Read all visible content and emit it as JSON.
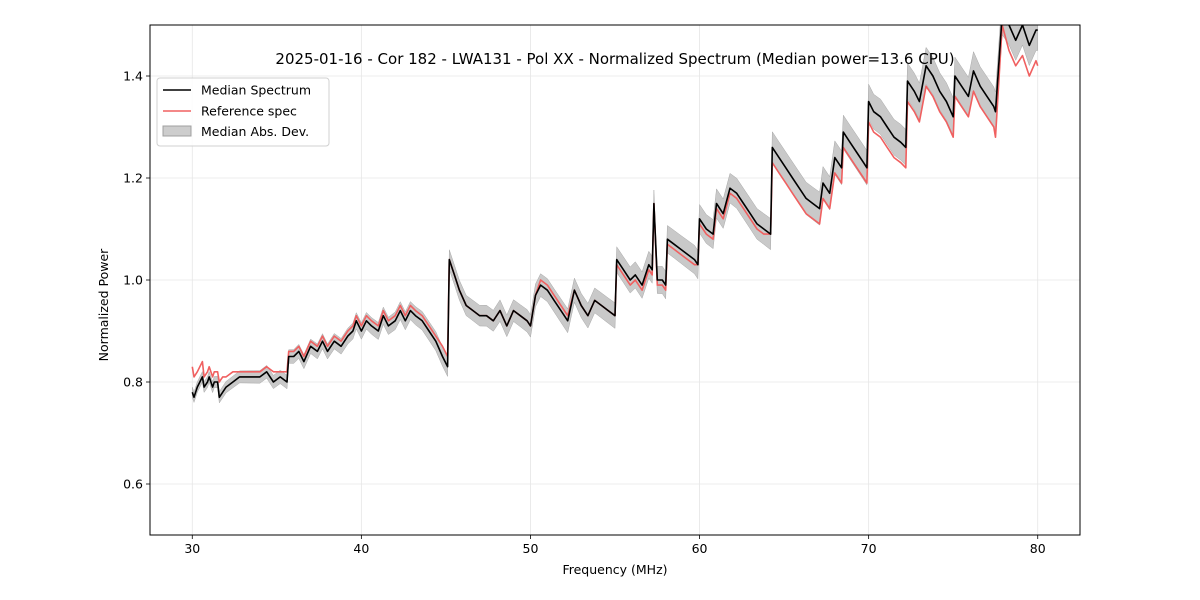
{
  "chart_data": {
    "type": "line",
    "title": "2025-01-16 - Cor 182 - LWA131 - Pol XX - Normalized Spectrum (Median power=13.6 CPU)",
    "xlabel": "Frequency (MHz)",
    "ylabel": "Normalized Power",
    "xlim": [
      27.5,
      82.5
    ],
    "ylim": [
      0.5,
      1.5
    ],
    "xticks": [
      30,
      40,
      50,
      60,
      70,
      80
    ],
    "xtick_labels": [
      "30",
      "40",
      "50",
      "60",
      "70",
      "80"
    ],
    "yticks": [
      0.6,
      0.8,
      1.0,
      1.2,
      1.4
    ],
    "ytick_labels": [
      "0.6",
      "0.8",
      "1.0",
      "1.2",
      "1.4"
    ],
    "grid": true,
    "legend_position": "top-left",
    "legend": [
      {
        "label": "Median Spectrum",
        "kind": "line",
        "color": "#000000"
      },
      {
        "label": "Reference spec",
        "kind": "line",
        "color": "#f06060"
      },
      {
        "label": "Median Abs. Dev.",
        "kind": "band",
        "color": "#c0c0c0"
      }
    ],
    "series": [
      {
        "name": "Median Spectrum",
        "color": "#000000",
        "x": [
          30.0,
          30.1,
          30.3,
          30.6,
          30.7,
          30.9,
          31.0,
          31.2,
          31.3,
          31.5,
          31.6,
          31.8,
          32.0,
          32.4,
          32.8,
          33.2,
          33.6,
          34.0,
          34.4,
          34.8,
          35.2,
          35.6,
          35.7,
          36.0,
          36.3,
          36.6,
          37.0,
          37.4,
          37.7,
          38.0,
          38.4,
          38.8,
          39.2,
          39.5,
          39.7,
          40.0,
          40.3,
          40.6,
          41.0,
          41.3,
          41.6,
          42.0,
          42.3,
          42.6,
          42.9,
          43.2,
          43.6,
          44.0,
          44.4,
          44.8,
          45.1,
          45.2,
          45.5,
          45.8,
          46.2,
          46.6,
          47.0,
          47.4,
          47.8,
          48.2,
          48.6,
          49.0,
          49.4,
          49.8,
          50.0,
          50.3,
          50.6,
          51.0,
          51.4,
          51.8,
          52.2,
          52.6,
          53.0,
          53.4,
          53.8,
          54.2,
          54.6,
          55.0,
          55.1,
          55.5,
          55.9,
          56.2,
          56.6,
          57.0,
          57.2,
          57.3,
          57.5,
          57.8,
          58.0,
          58.1,
          58.5,
          58.9,
          59.3,
          59.7,
          59.9,
          60.0,
          60.4,
          60.8,
          61.0,
          61.4,
          61.8,
          62.2,
          62.6,
          63.0,
          63.4,
          63.8,
          64.2,
          64.3,
          64.7,
          65.1,
          65.5,
          65.9,
          66.3,
          66.7,
          67.1,
          67.3,
          67.7,
          68.0,
          68.4,
          68.5,
          68.9,
          69.3,
          69.7,
          69.9,
          70.0,
          70.3,
          70.7,
          71.1,
          71.5,
          71.9,
          72.2,
          72.3,
          72.7,
          73.0,
          73.4,
          73.8,
          74.2,
          74.6,
          75.0,
          75.1,
          75.5,
          75.9,
          76.2,
          76.6,
          77.0,
          77.4,
          77.5,
          77.9,
          78.3,
          78.7,
          79.1,
          79.5,
          79.9,
          80.0
        ],
        "y": [
          0.78,
          0.77,
          0.79,
          0.81,
          0.79,
          0.8,
          0.81,
          0.79,
          0.8,
          0.8,
          0.77,
          0.78,
          0.79,
          0.8,
          0.81,
          0.81,
          0.81,
          0.81,
          0.82,
          0.8,
          0.81,
          0.8,
          0.85,
          0.85,
          0.86,
          0.84,
          0.87,
          0.86,
          0.88,
          0.86,
          0.88,
          0.87,
          0.89,
          0.9,
          0.92,
          0.9,
          0.92,
          0.91,
          0.9,
          0.93,
          0.91,
          0.92,
          0.94,
          0.92,
          0.94,
          0.93,
          0.92,
          0.9,
          0.88,
          0.85,
          0.83,
          1.04,
          1.01,
          0.98,
          0.95,
          0.94,
          0.93,
          0.93,
          0.92,
          0.94,
          0.91,
          0.94,
          0.93,
          0.92,
          0.91,
          0.97,
          0.99,
          0.98,
          0.96,
          0.94,
          0.92,
          0.98,
          0.95,
          0.93,
          0.96,
          0.95,
          0.94,
          0.93,
          1.04,
          1.02,
          1.0,
          1.01,
          0.99,
          1.03,
          1.02,
          1.15,
          1.0,
          1.0,
          0.99,
          1.08,
          1.07,
          1.06,
          1.05,
          1.04,
          1.03,
          1.12,
          1.1,
          1.09,
          1.15,
          1.13,
          1.18,
          1.17,
          1.15,
          1.13,
          1.11,
          1.1,
          1.09,
          1.26,
          1.24,
          1.22,
          1.2,
          1.18,
          1.16,
          1.15,
          1.14,
          1.19,
          1.17,
          1.24,
          1.22,
          1.29,
          1.27,
          1.25,
          1.23,
          1.22,
          1.35,
          1.33,
          1.32,
          1.3,
          1.28,
          1.27,
          1.26,
          1.39,
          1.37,
          1.35,
          1.42,
          1.4,
          1.37,
          1.35,
          1.32,
          1.4,
          1.38,
          1.36,
          1.41,
          1.38,
          1.36,
          1.34,
          1.33,
          1.52,
          1.5,
          1.47,
          1.5,
          1.46,
          1.49,
          1.49
        ]
      },
      {
        "name": "Reference spec",
        "color": "#f06060",
        "x": [
          30.0,
          30.1,
          30.3,
          30.6,
          30.7,
          30.9,
          31.0,
          31.2,
          31.3,
          31.5,
          31.6,
          31.8,
          32.0,
          32.4,
          32.8,
          33.2,
          33.6,
          34.0,
          34.4,
          34.8,
          35.2,
          35.6,
          35.7,
          36.0,
          36.3,
          36.6,
          37.0,
          37.4,
          37.7,
          38.0,
          38.4,
          38.8,
          39.2,
          39.5,
          39.7,
          40.0,
          40.3,
          40.6,
          41.0,
          41.3,
          41.6,
          42.0,
          42.3,
          42.6,
          42.9,
          43.2,
          43.6,
          44.0,
          44.4,
          44.8,
          45.1,
          45.2,
          45.5,
          45.8,
          46.2,
          46.6,
          47.0,
          47.4,
          47.8,
          48.2,
          48.6,
          49.0,
          49.4,
          49.8,
          50.0,
          50.3,
          50.6,
          51.0,
          51.4,
          51.8,
          52.2,
          52.6,
          53.0,
          53.4,
          53.8,
          54.2,
          54.6,
          55.0,
          55.1,
          55.5,
          55.9,
          56.2,
          56.6,
          57.0,
          57.2,
          57.3,
          57.5,
          57.8,
          58.0,
          58.1,
          58.5,
          58.9,
          59.3,
          59.7,
          59.9,
          60.0,
          60.4,
          60.8,
          61.0,
          61.4,
          61.8,
          62.2,
          62.6,
          63.0,
          63.4,
          63.8,
          64.2,
          64.3,
          64.7,
          65.1,
          65.5,
          65.9,
          66.3,
          66.7,
          67.1,
          67.3,
          67.7,
          68.0,
          68.4,
          68.5,
          68.9,
          69.3,
          69.7,
          69.9,
          70.0,
          70.3,
          70.7,
          71.1,
          71.5,
          71.9,
          72.2,
          72.3,
          72.7,
          73.0,
          73.4,
          73.8,
          74.2,
          74.6,
          75.0,
          75.1,
          75.5,
          75.9,
          76.2,
          76.6,
          77.0,
          77.4,
          77.5,
          77.9,
          78.3,
          78.7,
          79.1,
          79.5,
          79.9,
          80.0
        ],
        "y": [
          0.83,
          0.81,
          0.82,
          0.84,
          0.81,
          0.82,
          0.83,
          0.81,
          0.82,
          0.82,
          0.8,
          0.81,
          0.81,
          0.82,
          0.82,
          0.82,
          0.82,
          0.82,
          0.83,
          0.82,
          0.82,
          0.82,
          0.86,
          0.86,
          0.87,
          0.85,
          0.88,
          0.87,
          0.89,
          0.87,
          0.89,
          0.88,
          0.9,
          0.91,
          0.93,
          0.91,
          0.93,
          0.92,
          0.91,
          0.94,
          0.92,
          0.93,
          0.95,
          0.93,
          0.95,
          0.94,
          0.93,
          0.91,
          0.89,
          0.87,
          0.85,
          1.04,
          1.01,
          0.98,
          0.95,
          0.94,
          0.93,
          0.93,
          0.92,
          0.94,
          0.91,
          0.94,
          0.93,
          0.92,
          0.91,
          0.97,
          1.0,
          0.99,
          0.97,
          0.95,
          0.93,
          0.98,
          0.95,
          0.93,
          0.96,
          0.95,
          0.94,
          0.93,
          1.03,
          1.01,
          0.99,
          1.0,
          0.98,
          1.02,
          1.01,
          1.15,
          0.99,
          0.99,
          0.98,
          1.07,
          1.06,
          1.05,
          1.04,
          1.03,
          1.03,
          1.11,
          1.09,
          1.08,
          1.14,
          1.12,
          1.17,
          1.16,
          1.14,
          1.12,
          1.1,
          1.09,
          1.09,
          1.23,
          1.21,
          1.19,
          1.17,
          1.15,
          1.13,
          1.12,
          1.11,
          1.16,
          1.14,
          1.21,
          1.19,
          1.26,
          1.24,
          1.22,
          1.2,
          1.19,
          1.31,
          1.29,
          1.28,
          1.26,
          1.24,
          1.23,
          1.22,
          1.35,
          1.33,
          1.31,
          1.38,
          1.36,
          1.33,
          1.31,
          1.28,
          1.36,
          1.34,
          1.32,
          1.37,
          1.34,
          1.32,
          1.3,
          1.28,
          1.5,
          1.45,
          1.42,
          1.44,
          1.4,
          1.43,
          1.42
        ]
      }
    ],
    "band": {
      "name": "Median Abs. Dev.",
      "color": "#c0c0c0",
      "relative_to": "Median Spectrum",
      "half_width_start": 0.01,
      "half_width_end": 0.04
    }
  }
}
